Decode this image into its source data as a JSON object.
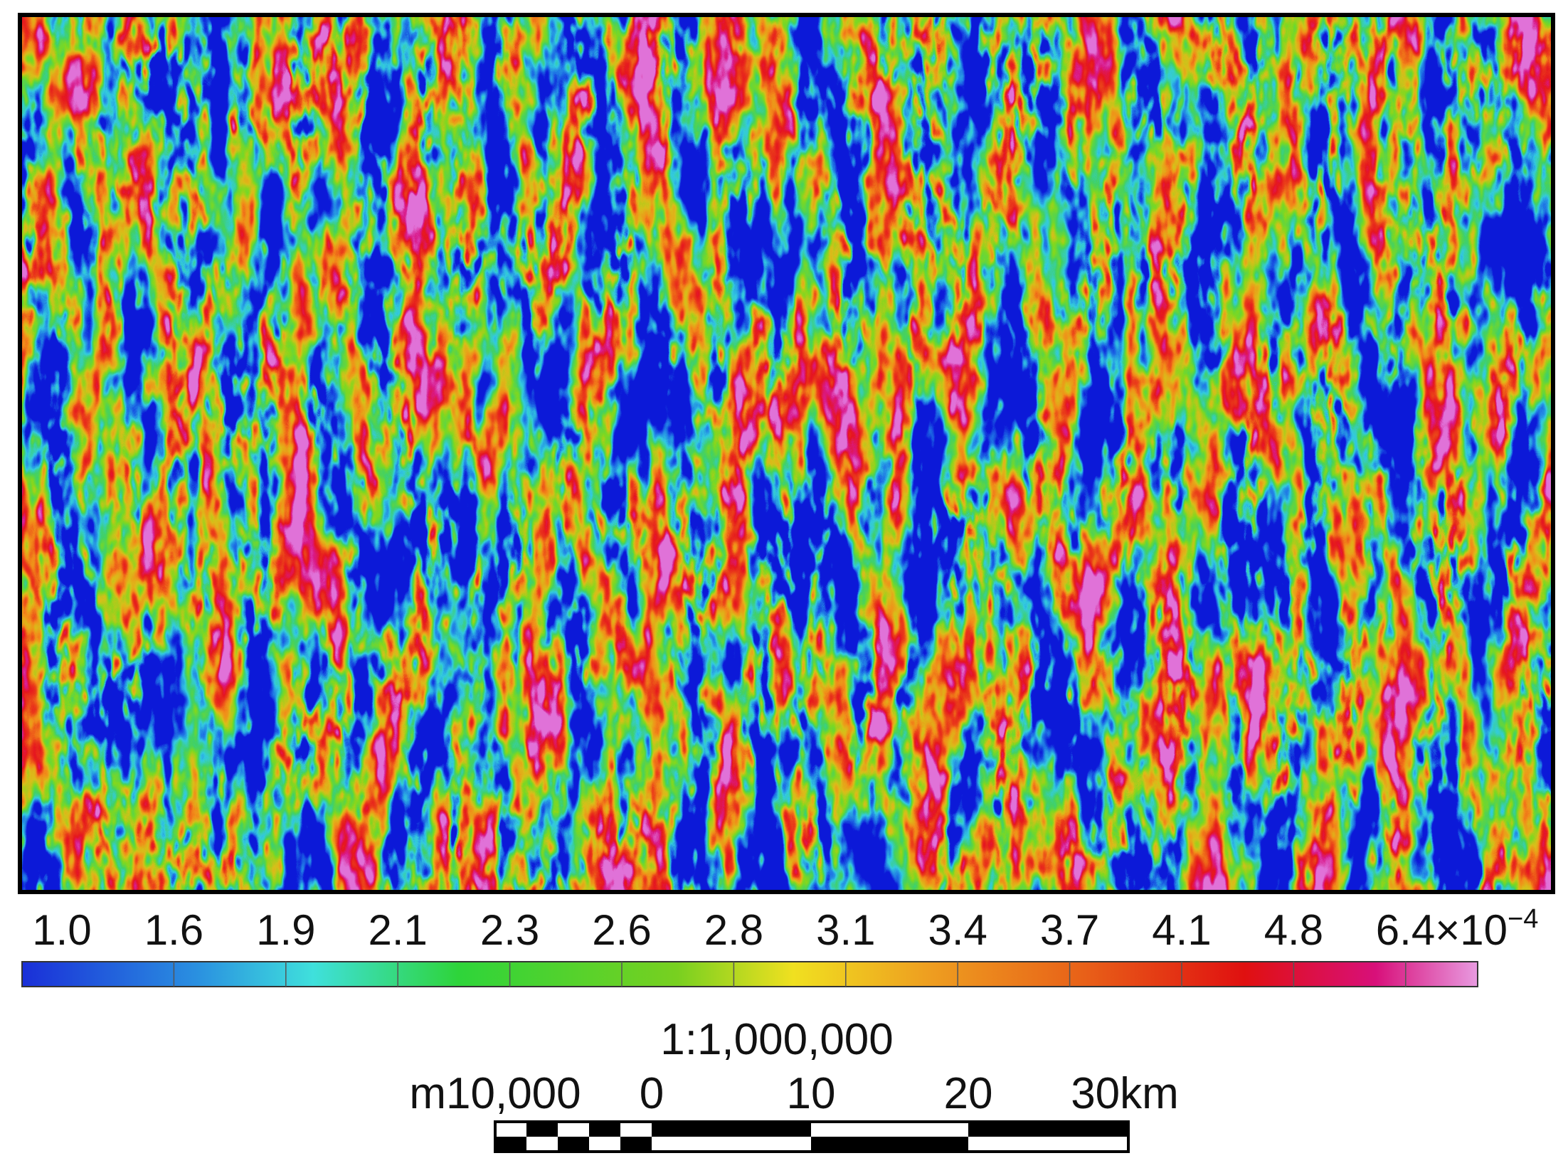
{
  "colorbar": {
    "labels": [
      "1.0",
      "1.6",
      "1.9",
      "2.1",
      "2.3",
      "2.6",
      "2.8",
      "3.1",
      "3.4",
      "3.7",
      "4.1",
      "4.8",
      "6.4"
    ],
    "multiplier": "×10",
    "exponent": "−4"
  },
  "scale": {
    "ratio": "1:1,000,000",
    "labels": [
      "m10,000",
      "0",
      "10",
      "20",
      "30km"
    ]
  }
}
